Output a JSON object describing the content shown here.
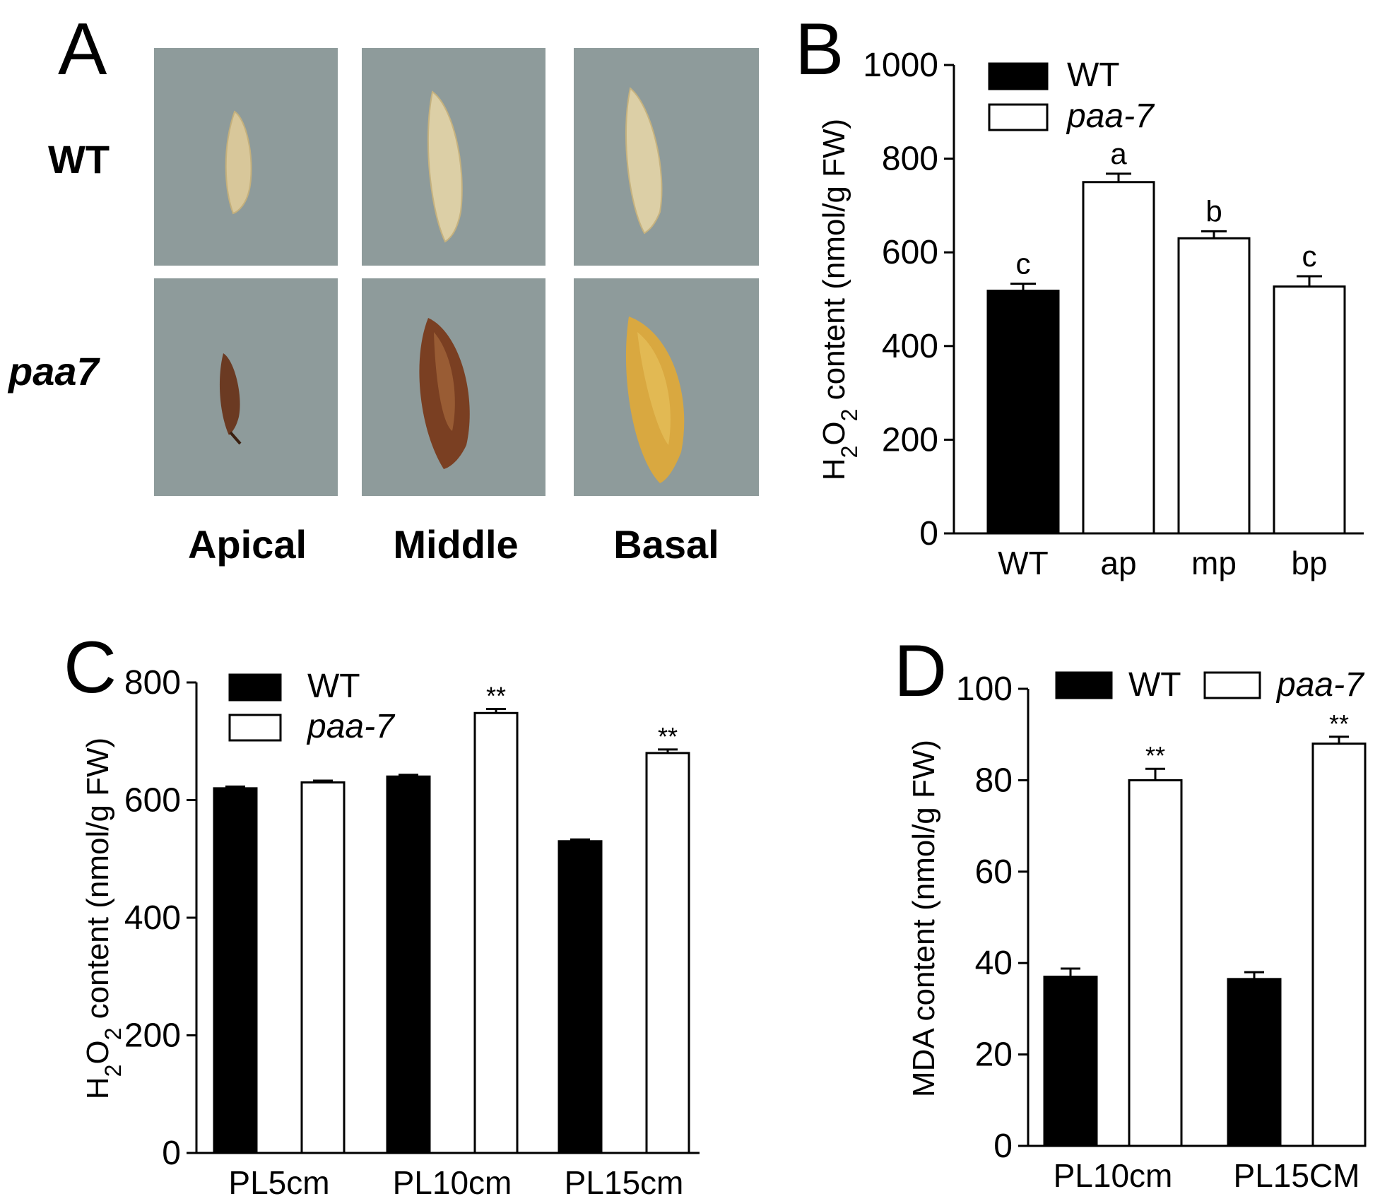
{
  "panel_a": {
    "letter": "A",
    "rows": [
      "WT",
      "paa7"
    ],
    "cols": [
      "Apical",
      "Middle",
      "Basal"
    ],
    "photo_bg": "#8e9b9b"
  },
  "chart_data": [
    {
      "id": "B",
      "type": "bar",
      "letter": "B",
      "ylabel_parts": [
        "H",
        "2",
        "O",
        "2",
        " content (nmol/g FW)"
      ],
      "ylim": [
        0,
        1000
      ],
      "yticks": [
        0,
        200,
        400,
        600,
        800,
        1000
      ],
      "categories": [
        "WT",
        "ap",
        "mp",
        "bp"
      ],
      "values": [
        518,
        750,
        630,
        527
      ],
      "errors": [
        15,
        18,
        15,
        22
      ],
      "fills": [
        "#000000",
        "#ffffff",
        "#ffffff",
        "#ffffff"
      ],
      "annotations": [
        "c",
        "a",
        "b",
        "c"
      ],
      "legend": [
        {
          "label": "WT",
          "fill": "#000000",
          "italic": false
        },
        {
          "label": "paa-7",
          "fill": "#ffffff",
          "italic": true
        }
      ]
    },
    {
      "id": "C",
      "type": "bar",
      "letter": "C",
      "ylabel_parts": [
        "H",
        "2",
        "O",
        "2",
        " content (nmol/g FW)"
      ],
      "ylim": [
        0,
        800
      ],
      "yticks": [
        0,
        200,
        400,
        600,
        800
      ],
      "categories": [
        "PL5cm",
        "PL10cm",
        "PL15cm"
      ],
      "series": [
        {
          "name": "WT",
          "fill": "#000000",
          "values": [
            620,
            640,
            530
          ],
          "errors": [
            3,
            3,
            3
          ],
          "stars": [
            "",
            "",
            ""
          ]
        },
        {
          "name": "paa-7",
          "fill": "#ffffff",
          "values": [
            630,
            748,
            680
          ],
          "errors": [
            3,
            7,
            6
          ],
          "stars": [
            "",
            "**",
            "**"
          ]
        }
      ],
      "legend": [
        {
          "label": "WT",
          "fill": "#000000",
          "italic": false
        },
        {
          "label": "paa-7",
          "fill": "#ffffff",
          "italic": true
        }
      ]
    },
    {
      "id": "D",
      "type": "bar",
      "letter": "D",
      "ylabel_parts": [
        "MDA content (nmol/g FW)"
      ],
      "ylim": [
        0,
        100
      ],
      "yticks": [
        0,
        20,
        40,
        60,
        80,
        100
      ],
      "categories": [
        "PL10cm",
        "PL15CM"
      ],
      "series": [
        {
          "name": "WT",
          "fill": "#000000",
          "values": [
            37,
            36.5
          ],
          "errors": [
            1.8,
            1.5
          ],
          "stars": [
            "",
            ""
          ]
        },
        {
          "name": "paa-7",
          "fill": "#ffffff",
          "values": [
            80,
            88
          ],
          "errors": [
            2.5,
            1.5
          ],
          "stars": [
            "**",
            "**"
          ]
        }
      ],
      "legend": [
        {
          "label": "WT",
          "fill": "#000000",
          "italic": false
        },
        {
          "label": "paa-7",
          "fill": "#ffffff",
          "italic": true
        }
      ]
    }
  ]
}
